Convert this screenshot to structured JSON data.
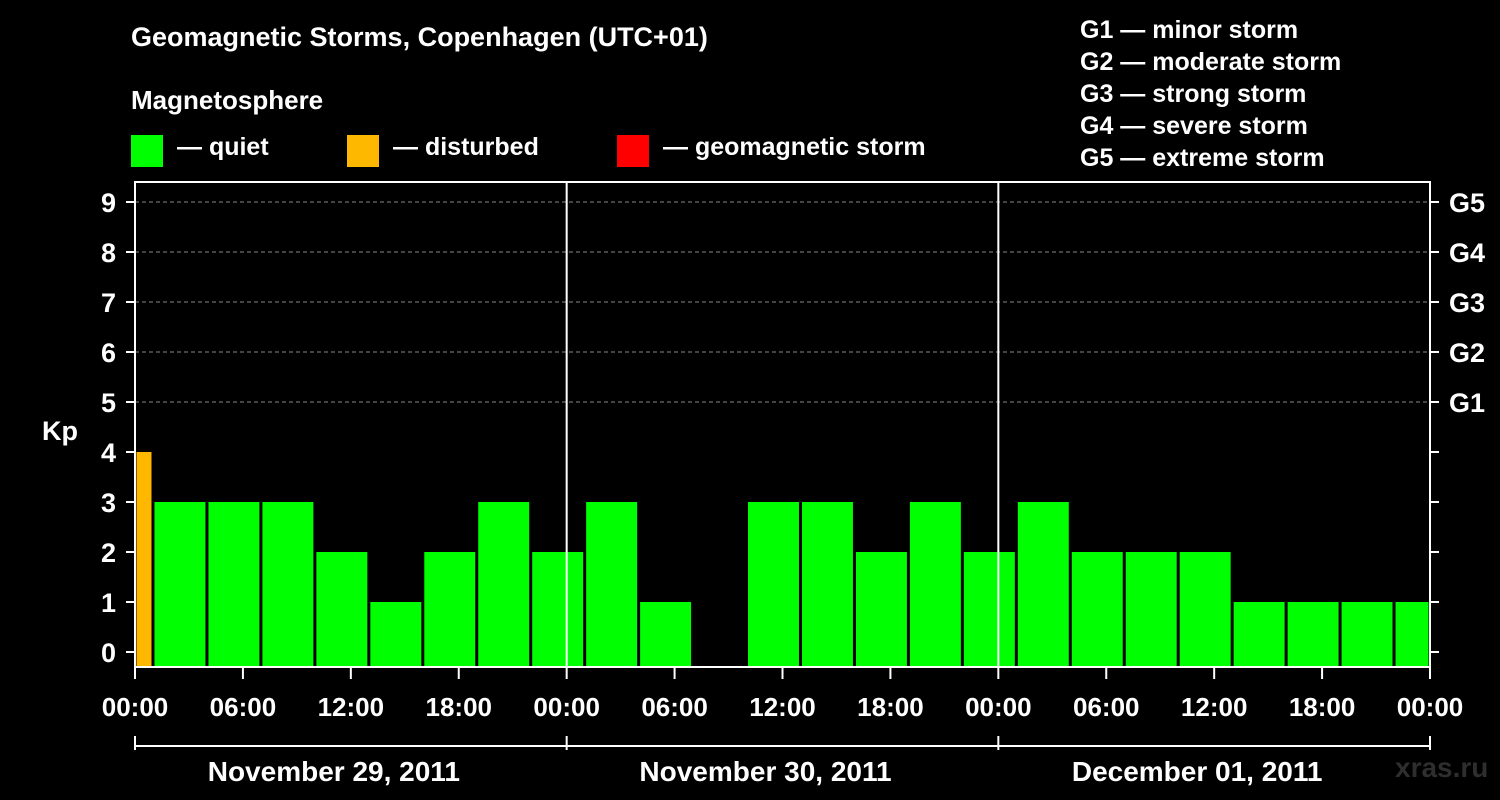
{
  "title": "Geomagnetic Storms, Copenhagen (UTC+01)",
  "magnetosphere": {
    "title": "Magnetosphere",
    "legend": [
      {
        "label": "— quiet",
        "color": "#00ff00"
      },
      {
        "label": "— disturbed",
        "color": "#ffb800"
      },
      {
        "label": "— geomagnetic storm",
        "color": "#ff0000"
      }
    ]
  },
  "storm_scale": [
    "G1 — minor storm",
    "G2 — moderate storm",
    "G3 — strong storm",
    "G4 — severe storm",
    "G5 — extreme storm"
  ],
  "watermark": "xras.ru",
  "chart_data": {
    "type": "bar",
    "ylabel": "Kp",
    "ylim": [
      0,
      9
    ],
    "yticks": [
      0,
      1,
      2,
      3,
      4,
      5,
      6,
      7,
      8,
      9
    ],
    "right_ticks": [
      {
        "value": 5,
        "label": "G1"
      },
      {
        "value": 6,
        "label": "G2"
      },
      {
        "value": 7,
        "label": "G3"
      },
      {
        "value": 8,
        "label": "G4"
      },
      {
        "value": 9,
        "label": "G5"
      }
    ],
    "x_tick_labels": [
      "00:00",
      "06:00",
      "12:00",
      "18:00",
      "00:00",
      "06:00",
      "12:00",
      "18:00",
      "00:00",
      "06:00",
      "12:00",
      "18:00",
      "00:00"
    ],
    "days": [
      "November 29, 2011",
      "November 30, 2011",
      "December 01, 2011"
    ],
    "grid": "horizontal dashed at 5-9",
    "bars": [
      {
        "start": "2011-11-29 00:00",
        "end": "2011-11-29 01:00",
        "kp": 4,
        "status": "disturbed"
      },
      {
        "start": "2011-11-29 01:00",
        "end": "2011-11-29 04:00",
        "kp": 3,
        "status": "quiet"
      },
      {
        "start": "2011-11-29 04:00",
        "end": "2011-11-29 07:00",
        "kp": 3,
        "status": "quiet"
      },
      {
        "start": "2011-11-29 07:00",
        "end": "2011-11-29 10:00",
        "kp": 3,
        "status": "quiet"
      },
      {
        "start": "2011-11-29 10:00",
        "end": "2011-11-29 13:00",
        "kp": 2,
        "status": "quiet"
      },
      {
        "start": "2011-11-29 13:00",
        "end": "2011-11-29 16:00",
        "kp": 1,
        "status": "quiet"
      },
      {
        "start": "2011-11-29 16:00",
        "end": "2011-11-29 19:00",
        "kp": 2,
        "status": "quiet"
      },
      {
        "start": "2011-11-29 19:00",
        "end": "2011-11-29 22:00",
        "kp": 3,
        "status": "quiet"
      },
      {
        "start": "2011-11-29 22:00",
        "end": "2011-11-30 01:00",
        "kp": 2,
        "status": "quiet"
      },
      {
        "start": "2011-11-30 01:00",
        "end": "2011-11-30 04:00",
        "kp": 3,
        "status": "quiet"
      },
      {
        "start": "2011-11-30 04:00",
        "end": "2011-11-30 07:00",
        "kp": 1,
        "status": "quiet"
      },
      {
        "start": "2011-11-30 07:00",
        "end": "2011-11-30 10:00",
        "kp": 0,
        "status": "quiet"
      },
      {
        "start": "2011-11-30 10:00",
        "end": "2011-11-30 13:00",
        "kp": 3,
        "status": "quiet"
      },
      {
        "start": "2011-11-30 13:00",
        "end": "2011-11-30 16:00",
        "kp": 3,
        "status": "quiet"
      },
      {
        "start": "2011-11-30 16:00",
        "end": "2011-11-30 19:00",
        "kp": 2,
        "status": "quiet"
      },
      {
        "start": "2011-11-30 19:00",
        "end": "2011-11-30 22:00",
        "kp": 3,
        "status": "quiet"
      },
      {
        "start": "2011-11-30 22:00",
        "end": "2011-12-01 01:00",
        "kp": 2,
        "status": "quiet"
      },
      {
        "start": "2011-12-01 01:00",
        "end": "2011-12-01 04:00",
        "kp": 3,
        "status": "quiet"
      },
      {
        "start": "2011-12-01 04:00",
        "end": "2011-12-01 07:00",
        "kp": 2,
        "status": "quiet"
      },
      {
        "start": "2011-12-01 07:00",
        "end": "2011-12-01 10:00",
        "kp": 2,
        "status": "quiet"
      },
      {
        "start": "2011-12-01 10:00",
        "end": "2011-12-01 13:00",
        "kp": 2,
        "status": "quiet"
      },
      {
        "start": "2011-12-01 13:00",
        "end": "2011-12-01 16:00",
        "kp": 1,
        "status": "quiet"
      },
      {
        "start": "2011-12-01 16:00",
        "end": "2011-12-01 19:00",
        "kp": 1,
        "status": "quiet"
      },
      {
        "start": "2011-12-01 19:00",
        "end": "2011-12-01 22:00",
        "kp": 1,
        "status": "quiet"
      },
      {
        "start": "2011-12-01 22:00",
        "end": "2011-12-02 00:00",
        "kp": 1,
        "status": "quiet"
      }
    ]
  }
}
